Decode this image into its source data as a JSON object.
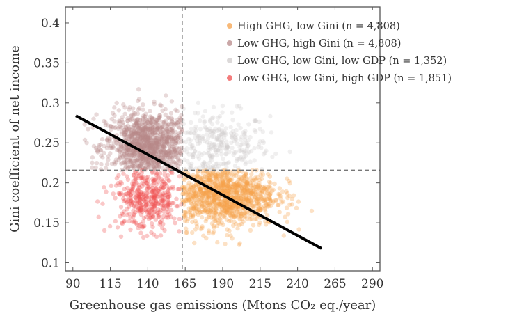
{
  "chart_data": {
    "type": "scatter",
    "xlabel": "Greenhouse gas emissions (Mtons CO₂ eq./year)",
    "ylabel": "Gini coefficient of net income",
    "xlim": [
      85,
      295
    ],
    "ylim": [
      0.09,
      0.42
    ],
    "xticks": [
      "90",
      "115",
      "140",
      "165",
      "190",
      "215",
      "240",
      "265",
      "290"
    ],
    "yticks": [
      "0.1",
      "0.15",
      "0.2",
      "0.25",
      "0.3",
      "0.35",
      "0.4"
    ],
    "grid": false,
    "legend_position": "top-right",
    "thresholds": {
      "x": 163,
      "y": 0.216
    },
    "trend_line": {
      "x": [
        92,
        256
      ],
      "y": [
        0.284,
        0.118
      ]
    },
    "series": [
      {
        "name": "High GHG, low Gini (n = 4,808)",
        "color": "#f5a24b",
        "n": 4808,
        "center": [
          190,
          0.185
        ],
        "spread": [
          18,
          0.02
        ]
      },
      {
        "name": "Low GHG, high Gini (n = 4,808)",
        "color": "#b88a8a",
        "n": 4808,
        "center": [
          140,
          0.245
        ],
        "spread": [
          14,
          0.022
        ]
      },
      {
        "name": "Low GHG, low Gini, low GDP (n = 1,352)",
        "color": "#d0cccc",
        "n": 1352,
        "center": [
          185,
          0.245
        ],
        "spread": [
          18,
          0.022
        ]
      },
      {
        "name": "Low GHG, low Gini, high GDP (n = 1,851)",
        "color": "#f05050",
        "n": 1851,
        "center": [
          140,
          0.18
        ],
        "spread": [
          12,
          0.02
        ]
      }
    ]
  }
}
